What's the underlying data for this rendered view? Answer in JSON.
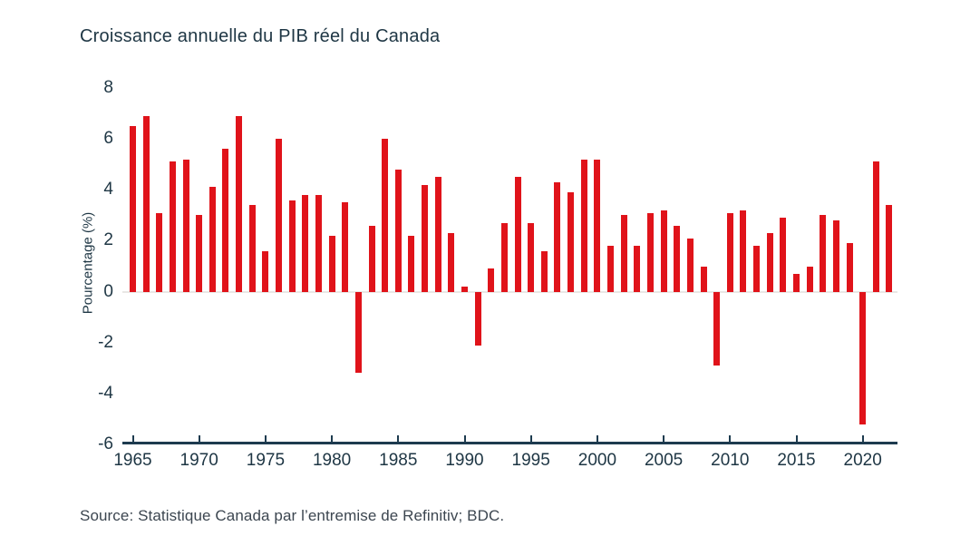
{
  "title": "Croissance annuelle du PIB réel du Canada",
  "source": "Source: Statistique Canada par l’entremise de Refinitiv; BDC.",
  "colors": {
    "bar": "#e0131a",
    "axis": "#1d3b4f",
    "zero_line": "#e9e7e5",
    "text": "#1e3644",
    "source_text": "#3c4650"
  },
  "chart_data": {
    "type": "bar",
    "title": "Croissance annuelle du PIB réel du Canada",
    "xlabel": "",
    "ylabel": "Pourcentage (%)",
    "ylim": [
      -6,
      8
    ],
    "yticks": [
      8,
      6,
      4,
      2,
      0,
      -2,
      -4,
      -6
    ],
    "xticks": [
      1965,
      1970,
      1975,
      1980,
      1985,
      1990,
      1995,
      2000,
      2005,
      2010,
      2015,
      2020
    ],
    "grid": false,
    "legend": "none",
    "bar_color": "#e0131a",
    "x": [
      1965,
      1966,
      1967,
      1968,
      1969,
      1970,
      1971,
      1972,
      1973,
      1974,
      1975,
      1976,
      1977,
      1978,
      1979,
      1980,
      1981,
      1982,
      1983,
      1984,
      1985,
      1986,
      1987,
      1988,
      1989,
      1990,
      1991,
      1992,
      1993,
      1994,
      1995,
      1996,
      1997,
      1998,
      1999,
      2000,
      2001,
      2002,
      2003,
      2004,
      2005,
      2006,
      2007,
      2008,
      2009,
      2010,
      2011,
      2012,
      2013,
      2014,
      2015,
      2016,
      2017,
      2018,
      2019,
      2020,
      2021,
      2022
    ],
    "values": [
      6.5,
      6.9,
      3.1,
      5.1,
      5.2,
      3.0,
      4.1,
      5.6,
      6.9,
      3.4,
      1.6,
      6.0,
      3.6,
      3.8,
      3.8,
      2.2,
      3.5,
      -3.2,
      2.6,
      6.0,
      4.8,
      2.2,
      4.2,
      4.5,
      2.3,
      0.2,
      -2.1,
      0.9,
      2.7,
      4.5,
      2.7,
      1.6,
      4.3,
      3.9,
      5.2,
      5.2,
      1.8,
      3.0,
      1.8,
      3.1,
      3.2,
      2.6,
      2.1,
      1.0,
      -2.9,
      3.1,
      3.2,
      1.8,
      2.3,
      2.9,
      0.7,
      1.0,
      3.0,
      2.8,
      1.9,
      -5.2,
      5.1,
      3.4
    ]
  }
}
